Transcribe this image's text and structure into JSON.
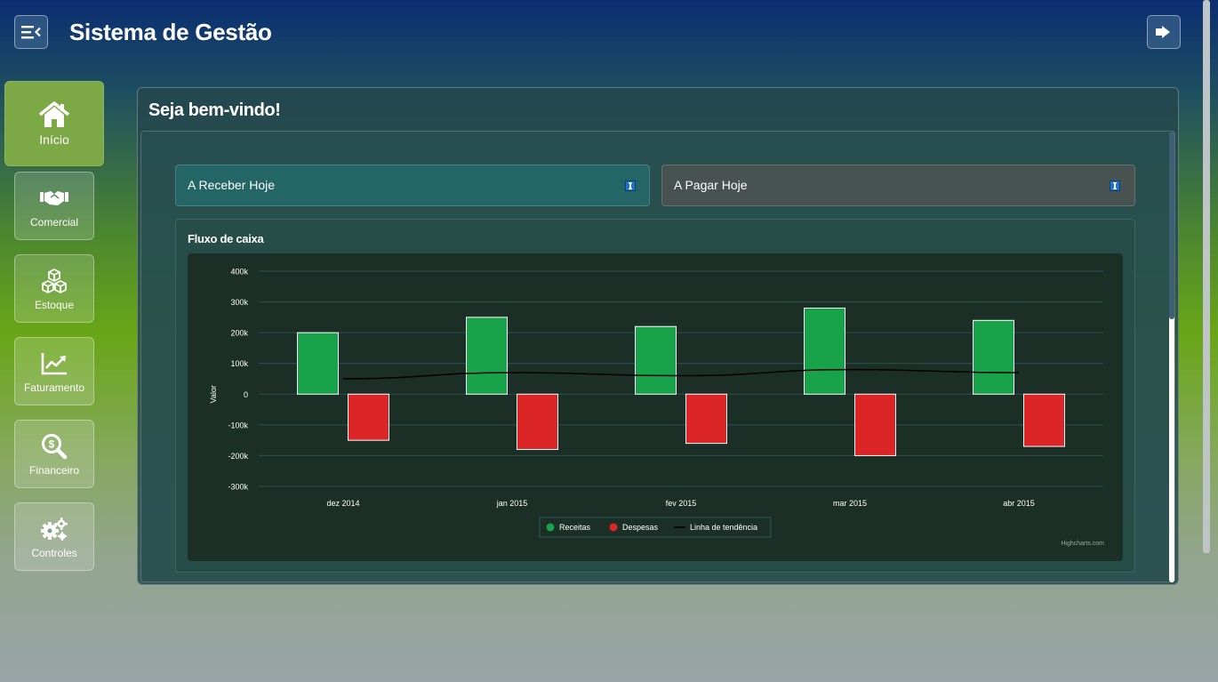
{
  "header": {
    "title": "Sistema de Gestão",
    "menu_icon": "menu-collapse-icon",
    "logout_icon": "sign-out-icon"
  },
  "sidebar": {
    "items": [
      {
        "label": "Início",
        "icon": "home-icon",
        "active": true
      },
      {
        "label": "Comercial",
        "icon": "handshake-icon"
      },
      {
        "label": "Estoque",
        "icon": "boxes-icon"
      },
      {
        "label": "Faturamento",
        "icon": "chart-line-icon"
      },
      {
        "label": "Financeiro",
        "icon": "search-dollar-icon"
      },
      {
        "label": "Controles",
        "icon": "cogs-icon"
      }
    ]
  },
  "main": {
    "welcome": "Seja bem-vindo!",
    "cards": {
      "receber": "A Receber Hoje",
      "pagar": "A Pagar Hoje"
    },
    "chart_title": "Fluxo de caixa",
    "credit": "Highcharts.com"
  },
  "colors": {
    "receitas": "#18a24a",
    "despesas": "#dc2527",
    "trend": "#000000"
  },
  "chart_data": {
    "type": "bar",
    "title": "Fluxo de caixa",
    "ylabel": "Valor",
    "xlabel": "",
    "ylim": [
      -300000,
      400000
    ],
    "yticks": [
      400000,
      300000,
      200000,
      100000,
      0,
      -100000,
      -200000,
      -300000
    ],
    "ytick_labels": [
      "400k",
      "300k",
      "200k",
      "100k",
      "0",
      "-100k",
      "-200k",
      "-300k"
    ],
    "categories": [
      "dez 2014",
      "jan 2015",
      "fev 2015",
      "mar 2015",
      "abr 2015"
    ],
    "series": [
      {
        "name": "Receitas",
        "type": "column",
        "values": [
          200000,
          250000,
          220000,
          280000,
          240000
        ]
      },
      {
        "name": "Despesas",
        "type": "column",
        "values": [
          -150000,
          -180000,
          -160000,
          -200000,
          -170000
        ]
      },
      {
        "name": "Linha de tendência",
        "type": "line",
        "values": [
          50000,
          70000,
          60000,
          80000,
          70000
        ]
      }
    ],
    "legend": "bottom-center",
    "grid": true
  }
}
